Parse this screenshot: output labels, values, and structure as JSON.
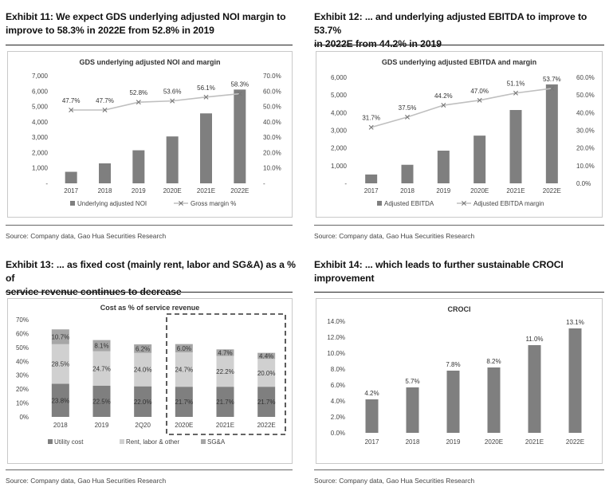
{
  "colors": {
    "bar": "#7f7f7f",
    "line": "#bfbfbf",
    "utility": "#7f7f7f",
    "rent": "#d0d0d0",
    "sga": "#a6a6a6"
  },
  "exhibits": [
    {
      "title_line1": "Exhibit 11: We expect GDS underlying adjusted NOI margin to",
      "title_line2": "improve to 58.3% in 2022E from 52.8% in 2019",
      "source": "Source: Company data, Gao Hua Securities Research"
    },
    {
      "title_line1": "Exhibit 12: ... and underlying adjusted EBITDA to improve to 53.7%",
      "title_line2": "in 2022E from 44.2% in 2019",
      "source": "Source: Company data, Gao Hua Securities Research"
    },
    {
      "title_line1": "Exhibit 13: ... as fixed cost (mainly rent, labor and SG&A) as a % of",
      "title_line2": "service revenue continues to decrease",
      "source": "Source: Company data, Gao Hua Securities Research"
    },
    {
      "title_line1": "Exhibit 14: ... which leads to further sustainable CROCI",
      "title_line2": "improvement",
      "source": "Source: Company data, Gao Hua Securities Research"
    }
  ],
  "chart_data": [
    {
      "type": "bar",
      "title": "GDS underlying adjusted NOI and margin",
      "categories": [
        "2017",
        "2018",
        "2019",
        "2020E",
        "2021E",
        "2022E"
      ],
      "ylim": [
        0,
        7000
      ],
      "y_ticks": [
        "-",
        "1,000",
        "2,000",
        "3,000",
        "4,000",
        "5,000",
        "6,000",
        "7,000"
      ],
      "y2lim": [
        0,
        70
      ],
      "y2_ticks": [
        "-",
        "10.0%",
        "20.0%",
        "30.0%",
        "40.0%",
        "50.0%",
        "60.0%",
        "70.0%"
      ],
      "series": [
        {
          "name": "Underlying adjusted NOI",
          "kind": "bar",
          "axis": "left",
          "values": [
            750,
            1300,
            2150,
            3050,
            4550,
            6100
          ]
        },
        {
          "name": "Gross margin %",
          "kind": "line",
          "axis": "right",
          "values": [
            47.7,
            47.7,
            52.8,
            53.6,
            56.1,
            58.3
          ],
          "labels": [
            "47.7%",
            "47.7%",
            "52.8%",
            "53.6%",
            "56.1%",
            "58.3%"
          ]
        }
      ],
      "legend": "bottom"
    },
    {
      "type": "bar",
      "title": "GDS underlying adjusted EBITDA and margin",
      "categories": [
        "2017",
        "2018",
        "2019",
        "2020E",
        "2021E",
        "2022E"
      ],
      "ylim": [
        0,
        6000
      ],
      "y_ticks": [
        "-",
        "1,000",
        "2,000",
        "3,000",
        "4,000",
        "5,000",
        "6,000"
      ],
      "y2lim": [
        0,
        60
      ],
      "y2_ticks": [
        "0.0%",
        "10.0%",
        "20.0%",
        "30.0%",
        "40.0%",
        "50.0%",
        "60.0%"
      ],
      "series": [
        {
          "name": "Adjusted EBITDA",
          "kind": "bar",
          "axis": "left",
          "values": [
            500,
            1050,
            1850,
            2700,
            4150,
            5600
          ]
        },
        {
          "name": "Adjusted EBITDA margin",
          "kind": "line",
          "axis": "right",
          "values": [
            31.7,
            37.5,
            44.2,
            47.0,
            51.1,
            53.7
          ],
          "labels": [
            "31.7%",
            "37.5%",
            "44.2%",
            "47.0%",
            "51.1%",
            "53.7%"
          ]
        }
      ],
      "legend": "bottom"
    },
    {
      "type": "bar",
      "stacked": true,
      "title": "Cost as % of service revenue",
      "categories": [
        "2018",
        "2019",
        "2Q20",
        "2020E",
        "2021E",
        "2022E"
      ],
      "ylim": [
        0,
        70
      ],
      "y_ticks": [
        "0%",
        "10%",
        "20%",
        "30%",
        "40%",
        "50%",
        "60%",
        "70%"
      ],
      "series": [
        {
          "name": "Utility cost",
          "values": [
            23.8,
            22.5,
            22.0,
            21.7,
            21.7,
            21.7
          ],
          "labels": [
            "23.8%",
            "22.5%",
            "22.0%",
            "21.7%",
            "21.7%",
            "21.7%"
          ]
        },
        {
          "name": "Rent, labor & other",
          "values": [
            28.5,
            24.7,
            24.0,
            24.7,
            22.2,
            20.0
          ],
          "labels": [
            "28.5%",
            "24.7%",
            "24.0%",
            "24.7%",
            "22.2%",
            "20.0%"
          ]
        },
        {
          "name": "SG&A",
          "values": [
            10.7,
            8.1,
            6.2,
            6.0,
            4.7,
            4.4
          ],
          "labels": [
            "10.7%",
            "8.1%",
            "6.2%",
            "6.0%",
            "4.7%",
            "4.4%"
          ]
        }
      ],
      "highlight_box": [
        "2020E",
        "2021E",
        "2022E"
      ],
      "legend": "bottom"
    },
    {
      "type": "bar",
      "title": "CROCI",
      "categories": [
        "2017",
        "2018",
        "2019",
        "2020E",
        "2021E",
        "2022E"
      ],
      "ylim": [
        0,
        14
      ],
      "y_ticks": [
        "0.0%",
        "2.0%",
        "4.0%",
        "6.0%",
        "8.0%",
        "10.0%",
        "12.0%",
        "14.0%"
      ],
      "series": [
        {
          "values": [
            4.2,
            5.7,
            7.8,
            8.2,
            11.0,
            13.1
          ],
          "labels": [
            "4.2%",
            "5.7%",
            "7.8%",
            "8.2%",
            "11.0%",
            "13.1%"
          ]
        }
      ]
    }
  ]
}
